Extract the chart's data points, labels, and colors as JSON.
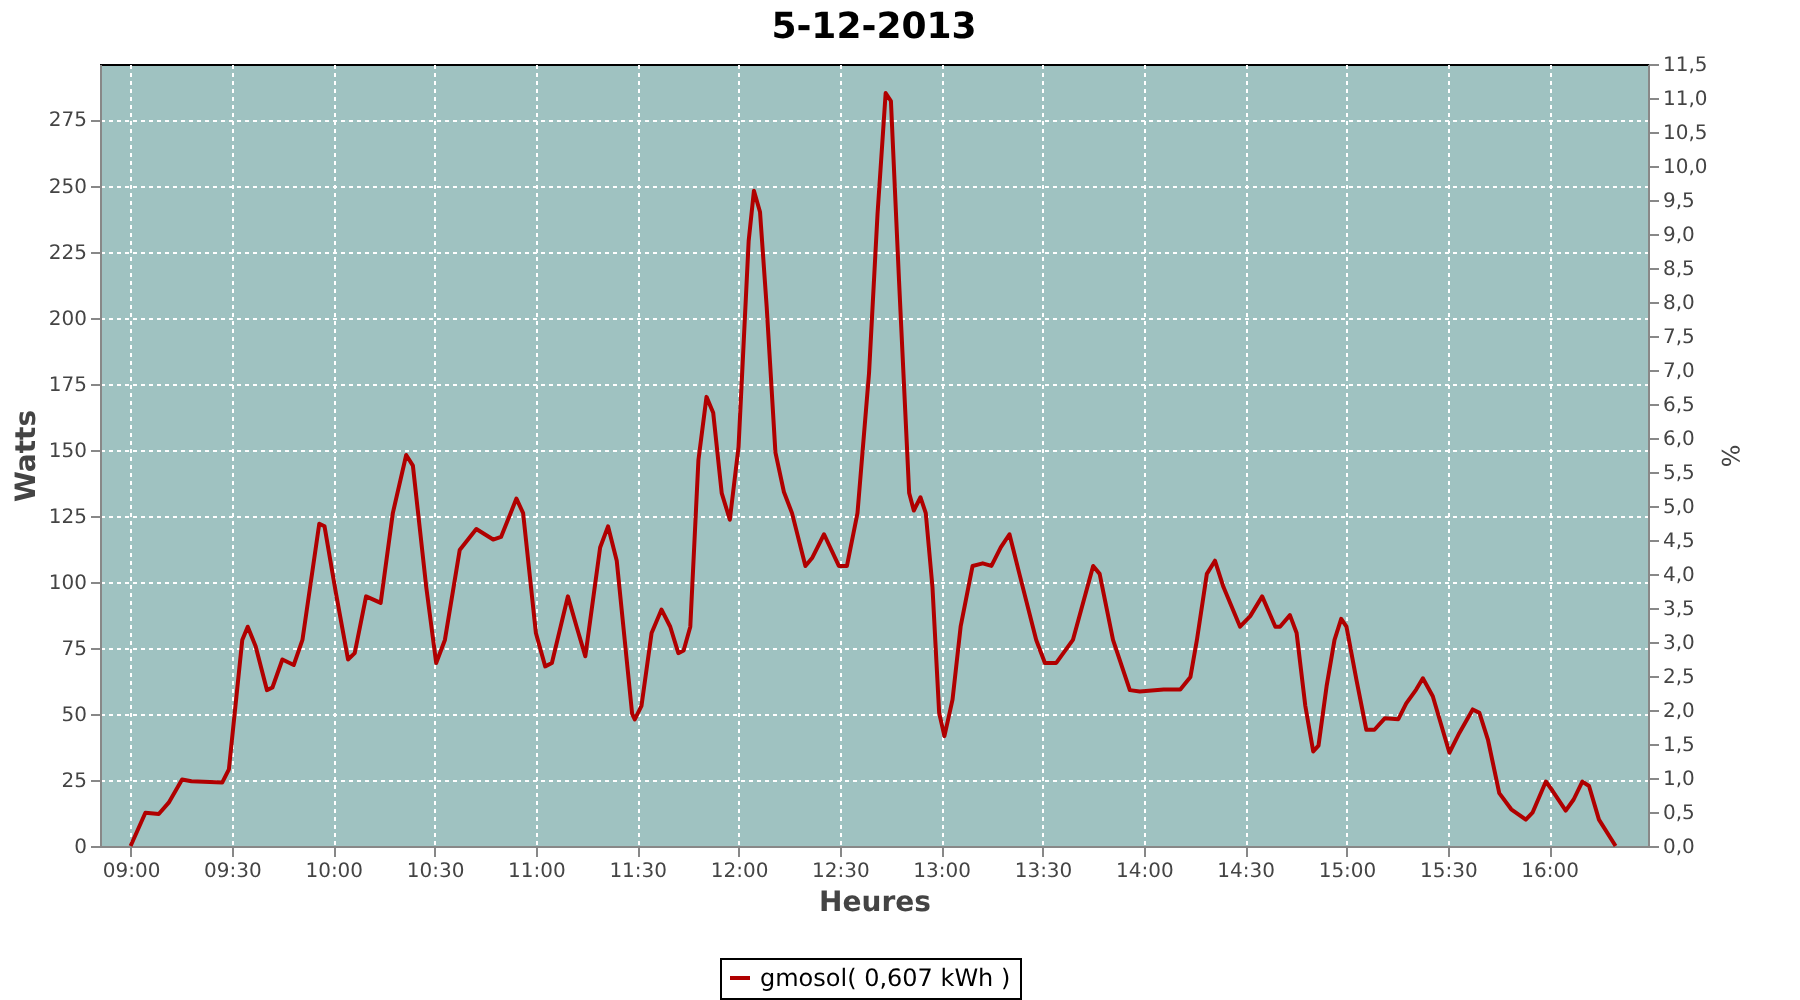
{
  "chart_data": {
    "type": "line",
    "title": "5-12-2013",
    "xlabel": "Heures",
    "ylabel": "Watts",
    "y2label": "%",
    "x": [
      9.0,
      9.073,
      9.139,
      9.188,
      9.254,
      9.3,
      9.452,
      9.485,
      9.551,
      9.578,
      9.617,
      9.673,
      9.7,
      9.749,
      9.805,
      9.848,
      9.931,
      9.957,
      10.013,
      10.073,
      10.106,
      10.162,
      10.234,
      10.294,
      10.36,
      10.393,
      10.459,
      10.508,
      10.551,
      10.624,
      10.706,
      10.789,
      10.828,
      10.904,
      10.937,
      11.0,
      11.046,
      11.079,
      11.158,
      11.201,
      11.244,
      11.317,
      11.356,
      11.399,
      11.475,
      11.488,
      11.521,
      11.571,
      11.62,
      11.663,
      11.703,
      11.729,
      11.762,
      11.802,
      11.842,
      11.875,
      11.917,
      11.957,
      12.0,
      12.05,
      12.076,
      12.106,
      12.139,
      12.182,
      12.224,
      12.264,
      12.33,
      12.363,
      12.422,
      12.495,
      12.535,
      12.587,
      12.644,
      12.686,
      12.726,
      12.752,
      12.792,
      12.842,
      12.865,
      12.898,
      12.924,
      12.957,
      12.99,
      13.016,
      13.056,
      13.096,
      13.155,
      13.205,
      13.248,
      13.294,
      13.337,
      13.386,
      13.469,
      13.512,
      13.568,
      13.65,
      13.75,
      13.782,
      13.848,
      13.931,
      13.98,
      14.098,
      14.18,
      14.23,
      14.262,
      14.311,
      14.351,
      14.393,
      14.475,
      14.525,
      14.584,
      14.649,
      14.672,
      14.721,
      14.754,
      14.797,
      14.836,
      14.862,
      14.902,
      14.941,
      14.974,
      15.0,
      15.049,
      15.098,
      15.138,
      15.19,
      15.256,
      15.295,
      15.344,
      15.377,
      15.426,
      15.508,
      15.557,
      15.623,
      15.656,
      15.698,
      15.754,
      15.813,
      15.885,
      15.918,
      15.984,
      16.016,
      16.082,
      16.121,
      16.164,
      16.197,
      16.246,
      16.328
    ],
    "series": [
      {
        "name": "gmosol( 0,607 kWh )",
        "color": "#b00000",
        "values": [
          0,
          12.6,
          12.1,
          16.4,
          25.2,
          24.5,
          24,
          29,
          78,
          83,
          75.6,
          59,
          60,
          70.6,
          68.5,
          78,
          122,
          121,
          95.8,
          70.6,
          73,
          94.5,
          92,
          126,
          148,
          144,
          98,
          69.3,
          78,
          112,
          120,
          116,
          117,
          131.5,
          126,
          80.6,
          68,
          69.3,
          94.5,
          83,
          71.8,
          113,
          121,
          108,
          50,
          47.9,
          53,
          80.6,
          89.5,
          83,
          73,
          74,
          83,
          146,
          170,
          164,
          133.6,
          123.5,
          151,
          229,
          248,
          240,
          204,
          149,
          134,
          126,
          106,
          109,
          118,
          106,
          106,
          126,
          179,
          239.4,
          285,
          282,
          214,
          133.6,
          127,
          132,
          126,
          98,
          50.4,
          41.6,
          55.4,
          83,
          106,
          107,
          106,
          113,
          118,
          103,
          78,
          69.3,
          69.3,
          78,
          106,
          103,
          78,
          59,
          58.5,
          59.2,
          59.2,
          64,
          78,
          103,
          108,
          98,
          83,
          87,
          94.5,
          83,
          83,
          87.4,
          80.6,
          53,
          35.8,
          38,
          60.5,
          78,
          86,
          83,
          63,
          44,
          44,
          48.4,
          48,
          54,
          59.2,
          63.5,
          56.7,
          35.3,
          42.8,
          51.7,
          50.4,
          40.3,
          20,
          13.9,
          10,
          12.6,
          24.4,
          21,
          13.4,
          17.6,
          24.4,
          22.7,
          10,
          0
        ]
      }
    ],
    "xlim": [
      8.849,
      16.488
    ],
    "xticks": [
      {
        "value": 9,
        "label": "09:00"
      },
      {
        "value": 9.5,
        "label": "09:30"
      },
      {
        "value": 10,
        "label": "10:00"
      },
      {
        "value": 10.5,
        "label": "10:30"
      },
      {
        "value": 11,
        "label": "11:00"
      },
      {
        "value": 11.5,
        "label": "11:30"
      },
      {
        "value": 12,
        "label": "12:00"
      },
      {
        "value": 12.5,
        "label": "12:30"
      },
      {
        "value": 13,
        "label": "13:00"
      },
      {
        "value": 13.5,
        "label": "13:30"
      },
      {
        "value": 14,
        "label": "14:00"
      },
      {
        "value": 14.5,
        "label": "14:30"
      },
      {
        "value": 15,
        "label": "15:00"
      },
      {
        "value": 15.5,
        "label": "15:30"
      },
      {
        "value": 16,
        "label": "16:00"
      }
    ],
    "ylim": [
      0,
      296
    ],
    "yticks": [
      0,
      25,
      50,
      75,
      100,
      125,
      150,
      175,
      200,
      225,
      250,
      275
    ],
    "y2lim": [
      0,
      11.5
    ],
    "y2ticks": [
      {
        "value": 0,
        "label": "0,0"
      },
      {
        "value": 0.5,
        "label": "0,5"
      },
      {
        "value": 1,
        "label": "1,0"
      },
      {
        "value": 1.5,
        "label": "1,5"
      },
      {
        "value": 2,
        "label": "2,0"
      },
      {
        "value": 2.5,
        "label": "2,5"
      },
      {
        "value": 3,
        "label": "3,0"
      },
      {
        "value": 3.5,
        "label": "3,5"
      },
      {
        "value": 4,
        "label": "4,0"
      },
      {
        "value": 4.5,
        "label": "4,5"
      },
      {
        "value": 5,
        "label": "5,0"
      },
      {
        "value": 5.5,
        "label": "5,5"
      },
      {
        "value": 6,
        "label": "6,0"
      },
      {
        "value": 6.5,
        "label": "6,5"
      },
      {
        "value": 7,
        "label": "7,0"
      },
      {
        "value": 7.5,
        "label": "7,5"
      },
      {
        "value": 8,
        "label": "8,0"
      },
      {
        "value": 8.5,
        "label": "8,5"
      },
      {
        "value": 9,
        "label": "9,0"
      },
      {
        "value": 9.5,
        "label": "9,5"
      },
      {
        "value": 10,
        "label": "10,0"
      },
      {
        "value": 10.5,
        "label": "10,5"
      },
      {
        "value": 11,
        "label": "11,0"
      },
      {
        "value": 11.5,
        "label": "11,5"
      }
    ],
    "grid": true,
    "legend": "bottom",
    "marker": "none",
    "line_style": "solid"
  }
}
